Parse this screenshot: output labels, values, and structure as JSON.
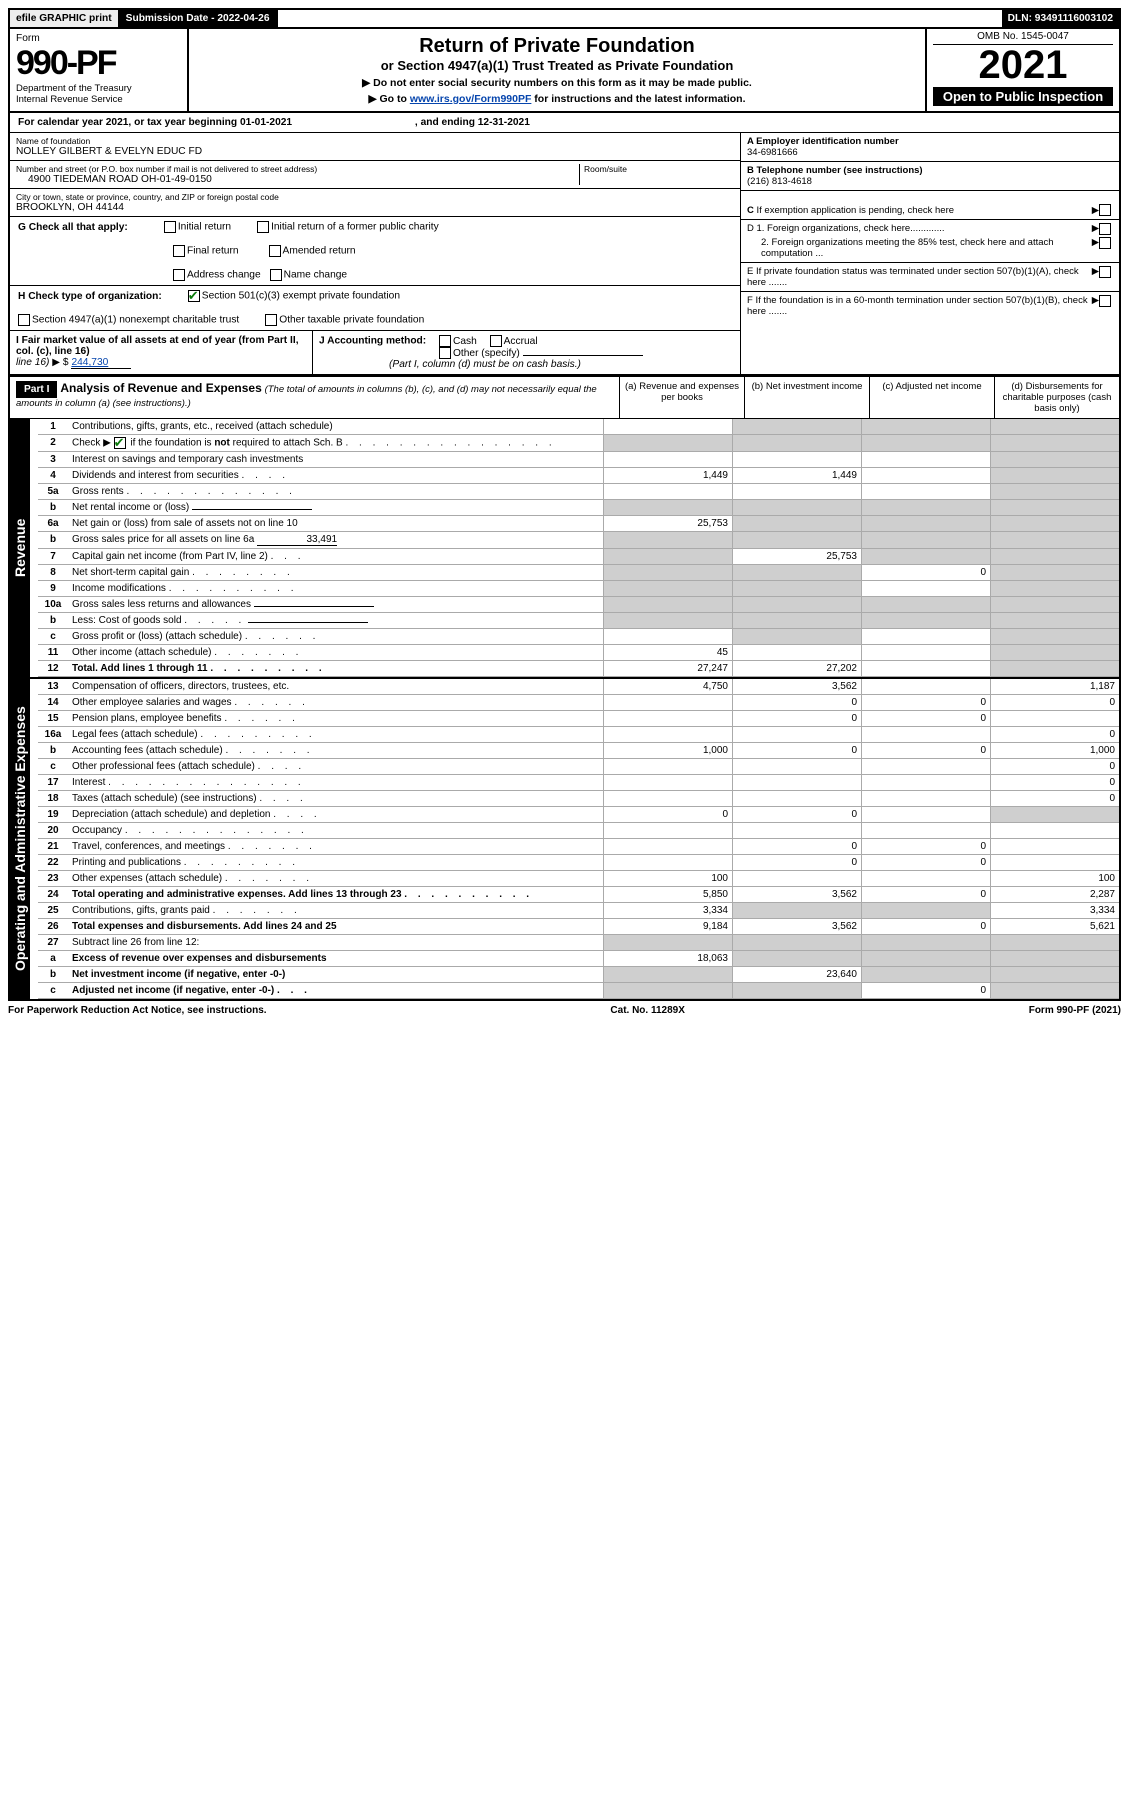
{
  "topbar": {
    "efile_label": "efile GRAPHIC print",
    "submission_label": "Submission Date - 2022-04-26",
    "dln_label": "DLN: 93491116003102"
  },
  "header": {
    "form_word": "Form",
    "form_number": "990-PF",
    "dept": "Department of the Treasury",
    "irs": "Internal Revenue Service",
    "title": "Return of Private Foundation",
    "subtitle": "or Section 4947(a)(1) Trust Treated as Private Foundation",
    "note1": "▶ Do not enter social security numbers on this form as it may be made public.",
    "note2_pre": "▶ Go to ",
    "note2_link": "www.irs.gov/Form990PF",
    "note2_post": " for instructions and the latest information.",
    "omb": "OMB No. 1545-0047",
    "year": "2021",
    "open": "Open to Public Inspection"
  },
  "calyear": {
    "pre": "For calendar year 2021, or tax year beginning ",
    "begin": "01-01-2021",
    "mid": " , and ending ",
    "end": "12-31-2021"
  },
  "foundation": {
    "name_label": "Name of foundation",
    "name": "NOLLEY GILBERT & EVELYN EDUC FD",
    "street_label": "Number and street (or P.O. box number if mail is not delivered to street address)",
    "room_label": "Room/suite",
    "street": "4900 TIEDEMAN ROAD OH-01-49-0150",
    "city_label": "City or town, state or province, country, and ZIP or foreign postal code",
    "city": "BROOKLYN, OH  44144"
  },
  "right_info": {
    "a_label": "A Employer identification number",
    "a_val": "34-6981666",
    "b_label": "B Telephone number (see instructions)",
    "b_val": "(216) 813-4618",
    "c_label": "C If exemption application is pending, check here",
    "d1_label": "D 1. Foreign organizations, check here.............",
    "d2_label": "2. Foreign organizations meeting the 85% test, check here and attach computation ...",
    "e_label": "E  If private foundation status was terminated under section 507(b)(1)(A), check here .......",
    "f_label": "F  If the foundation is in a 60-month termination under section 507(b)(1)(B), check here .......",
    "arrow": "▶"
  },
  "g": {
    "label": "G Check all that apply:",
    "opts": [
      "Initial return",
      "Final return",
      "Address change",
      "Initial return of a former public charity",
      "Amended return",
      "Name change"
    ]
  },
  "h": {
    "label": "H Check type of organization:",
    "opt1": "Section 501(c)(3) exempt private foundation",
    "opt2": "Section 4947(a)(1) nonexempt charitable trust",
    "opt3": "Other taxable private foundation"
  },
  "i": {
    "label": "I Fair market value of all assets at end of year (from Part II, col. (c), line 16)",
    "value_label": "▶ $",
    "value": "244,730"
  },
  "j": {
    "label": "J Accounting method:",
    "cash": "Cash",
    "accrual": "Accrual",
    "other": "Other (specify)",
    "note": "(Part I, column (d) must be on cash basis.)"
  },
  "part1": {
    "num": "Part I",
    "title": "Analysis of Revenue and Expenses",
    "note": "(The total of amounts in columns (b), (c), and (d) may not necessarily equal the amounts in column (a) (see instructions).)",
    "cols": {
      "a": "(a)  Revenue and expenses per books",
      "b": "(b)  Net investment income",
      "c": "(c)  Adjusted net income",
      "d": "(d)  Disbursements for charitable purposes (cash basis only)"
    }
  },
  "sides": {
    "rev": "Revenue",
    "ops": "Operating and Administrative Expenses"
  },
  "rows_rev": [
    {
      "n": "1",
      "label": "Contributions, gifts, grants, etc., received (attach schedule)",
      "a": "",
      "b": "",
      "c": "",
      "d": "",
      "sb": true,
      "sc": true,
      "sd": true
    },
    {
      "n": "2",
      "label": "Check ▶ ☑ if the foundation is not required to attach Sch. B",
      "a": "",
      "b": "",
      "c": "",
      "d": "",
      "sa": true,
      "sb": true,
      "sc": true,
      "sd": true,
      "hascheck": true,
      "dots": ". . . . . . . . . . . . . . . ."
    },
    {
      "n": "3",
      "label": "Interest on savings and temporary cash investments",
      "a": "",
      "b": "",
      "c": "",
      "d": "",
      "sd": true
    },
    {
      "n": "4",
      "label": "Dividends and interest from securities",
      "a": "1,449",
      "b": "1,449",
      "c": "",
      "d": "",
      "sd": true,
      "dots": ". . . ."
    },
    {
      "n": "5a",
      "label": "Gross rents",
      "a": "",
      "b": "",
      "c": "",
      "d": "",
      "sd": true,
      "dots": ". . . . . . . . . . . . ."
    },
    {
      "n": "b",
      "label": "Net rental income or (loss)",
      "a": "",
      "b": "",
      "c": "",
      "d": "",
      "sa": true,
      "sb": true,
      "sc": true,
      "sd": true,
      "inline": true
    },
    {
      "n": "6a",
      "label": "Net gain or (loss) from sale of assets not on line 10",
      "a": "25,753",
      "b": "",
      "c": "",
      "d": "",
      "sb": true,
      "sc": true,
      "sd": true
    },
    {
      "n": "b",
      "label": "Gross sales price for all assets on line 6a",
      "a": "",
      "b": "",
      "c": "",
      "d": "",
      "sa": true,
      "sb": true,
      "sc": true,
      "sd": true,
      "val": "33,491",
      "inline": true
    },
    {
      "n": "7",
      "label": "Capital gain net income (from Part IV, line 2)",
      "a": "",
      "b": "25,753",
      "c": "",
      "d": "",
      "sa": true,
      "sc": true,
      "sd": true,
      "dots": ". . ."
    },
    {
      "n": "8",
      "label": "Net short-term capital gain",
      "a": "",
      "b": "",
      "c": "0",
      "d": "",
      "sa": true,
      "sb": true,
      "sd": true,
      "dots": ". . . . . . . ."
    },
    {
      "n": "9",
      "label": "Income modifications",
      "a": "",
      "b": "",
      "c": "",
      "d": "",
      "sa": true,
      "sb": true,
      "sd": true,
      "dots": ". . . . . . . . . ."
    },
    {
      "n": "10a",
      "label": "Gross sales less returns and allowances",
      "a": "",
      "b": "",
      "c": "",
      "d": "",
      "sa": true,
      "sb": true,
      "sc": true,
      "sd": true,
      "inline": true
    },
    {
      "n": "b",
      "label": "Less: Cost of goods sold",
      "a": "",
      "b": "",
      "c": "",
      "d": "",
      "sa": true,
      "sb": true,
      "sc": true,
      "sd": true,
      "inline": true,
      "dots": ". . . . ."
    },
    {
      "n": "c",
      "label": "Gross profit or (loss) (attach schedule)",
      "a": "",
      "b": "",
      "c": "",
      "d": "",
      "sb": true,
      "sd": true,
      "dots": ". . . . . ."
    },
    {
      "n": "11",
      "label": "Other income (attach schedule)",
      "a": "45",
      "b": "",
      "c": "",
      "d": "",
      "sd": true,
      "dots": ". . . . . . ."
    },
    {
      "n": "12",
      "label": "Total. Add lines 1 through 11",
      "a": "27,247",
      "b": "27,202",
      "c": "",
      "d": "",
      "sd": true,
      "bold": true,
      "dots": ". . . . . . . . ."
    }
  ],
  "rows_ops": [
    {
      "n": "13",
      "label": "Compensation of officers, directors, trustees, etc.",
      "a": "4,750",
      "b": "3,562",
      "c": "",
      "d": "1,187"
    },
    {
      "n": "14",
      "label": "Other employee salaries and wages",
      "a": "",
      "b": "0",
      "c": "0",
      "d": "0",
      "dots": ". . . . . ."
    },
    {
      "n": "15",
      "label": "Pension plans, employee benefits",
      "a": "",
      "b": "0",
      "c": "0",
      "d": "",
      "dots": ". . . . . ."
    },
    {
      "n": "16a",
      "label": "Legal fees (attach schedule)",
      "a": "",
      "b": "",
      "c": "",
      "d": "0",
      "dots": ". . . . . . . . ."
    },
    {
      "n": "b",
      "label": "Accounting fees (attach schedule)",
      "a": "1,000",
      "b": "0",
      "c": "0",
      "d": "1,000",
      "dots": ". . . . . . ."
    },
    {
      "n": "c",
      "label": "Other professional fees (attach schedule)",
      "a": "",
      "b": "",
      "c": "",
      "d": "0",
      "dots": ". . . ."
    },
    {
      "n": "17",
      "label": "Interest",
      "a": "",
      "b": "",
      "c": "",
      "d": "0",
      "dots": ". . . . . . . . . . . . . . ."
    },
    {
      "n": "18",
      "label": "Taxes (attach schedule) (see instructions)",
      "a": "",
      "b": "",
      "c": "",
      "d": "0",
      "dots": ". . . ."
    },
    {
      "n": "19",
      "label": "Depreciation (attach schedule) and depletion",
      "a": "0",
      "b": "0",
      "c": "",
      "d": "",
      "sd": true,
      "dots": ". . . ."
    },
    {
      "n": "20",
      "label": "Occupancy",
      "a": "",
      "b": "",
      "c": "",
      "d": "",
      "dots": ". . . . . . . . . . . . . ."
    },
    {
      "n": "21",
      "label": "Travel, conferences, and meetings",
      "a": "",
      "b": "0",
      "c": "0",
      "d": "",
      "dots": ". . . . . . ."
    },
    {
      "n": "22",
      "label": "Printing and publications",
      "a": "",
      "b": "0",
      "c": "0",
      "d": "",
      "dots": ". . . . . . . . ."
    },
    {
      "n": "23",
      "label": "Other expenses (attach schedule)",
      "a": "100",
      "b": "",
      "c": "",
      "d": "100",
      "dots": ". . . . . . ."
    },
    {
      "n": "24",
      "label": "Total operating and administrative expenses. Add lines 13 through 23",
      "a": "5,850",
      "b": "3,562",
      "c": "0",
      "d": "2,287",
      "bold": true,
      "dots": ". . . . . . . . . ."
    },
    {
      "n": "25",
      "label": "Contributions, gifts, grants paid",
      "a": "3,334",
      "b": "",
      "c": "",
      "d": "3,334",
      "sb": true,
      "sc": true,
      "dots": ". . . . . . ."
    },
    {
      "n": "26",
      "label": "Total expenses and disbursements. Add lines 24 and 25",
      "a": "9,184",
      "b": "3,562",
      "c": "0",
      "d": "5,621",
      "bold": true
    },
    {
      "n": "27",
      "label": "Subtract line 26 from line 12:",
      "a": "",
      "b": "",
      "c": "",
      "d": "",
      "sa": true,
      "sb": true,
      "sc": true,
      "sd": true
    },
    {
      "n": "a",
      "label": "Excess of revenue over expenses and disbursements",
      "a": "18,063",
      "b": "",
      "c": "",
      "d": "",
      "sb": true,
      "sc": true,
      "sd": true,
      "bold": true
    },
    {
      "n": "b",
      "label": "Net investment income (if negative, enter -0-)",
      "a": "",
      "b": "23,640",
      "c": "",
      "d": "",
      "sa": true,
      "sc": true,
      "sd": true,
      "bold": true
    },
    {
      "n": "c",
      "label": "Adjusted net income (if negative, enter -0-)",
      "a": "",
      "b": "",
      "c": "0",
      "d": "",
      "sa": true,
      "sb": true,
      "sd": true,
      "bold": true,
      "dots": ". . ."
    }
  ],
  "footer": {
    "left": "For Paperwork Reduction Act Notice, see instructions.",
    "mid": "Cat. No. 11289X",
    "right": "Form 990-PF (2021)"
  },
  "colors": {
    "shade": "#cfcfcf",
    "check": "#0a7a0a",
    "link": "#0645ad"
  }
}
